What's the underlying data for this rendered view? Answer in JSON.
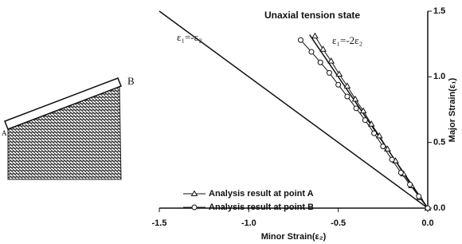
{
  "chart_data": {
    "type": "scatter",
    "xlabel": "Minor Strain(ε₂)",
    "ylabel": "Major Strain(ε₁)",
    "xlim": [
      -1.5,
      0.0
    ],
    "ylim": [
      0.0,
      1.5
    ],
    "xticks": [
      {
        "value": -1.5,
        "label": "-1.5"
      },
      {
        "value": -1.0,
        "label": "-1.0"
      },
      {
        "value": -0.5,
        "label": "-0.5"
      },
      {
        "value": 0,
        "label": "0.0"
      }
    ],
    "yticks": [
      {
        "value": 0,
        "label": "0.0"
      },
      {
        "value": 0.5,
        "label": "0.5"
      },
      {
        "value": 1.0,
        "label": "1.0"
      },
      {
        "value": 1.5,
        "label": "1.5"
      }
    ],
    "legend": "lower left",
    "inset_labels": [
      "A",
      "B"
    ],
    "reference_lines": [
      {
        "label": "ε₁=-ε₂",
        "x": [
          -1.5,
          0
        ],
        "y": [
          1.5,
          0
        ]
      },
      {
        "label": "ε₁=-2ε₂",
        "note": "Unaxial tension state",
        "x": [
          -0.66,
          0
        ],
        "y": [
          1.32,
          0
        ]
      }
    ],
    "series": [
      {
        "name": "Analysis result at point A",
        "marker": "triangle",
        "color": "#111111",
        "x": [
          0,
          -0.045,
          -0.09,
          -0.135,
          -0.18,
          -0.225,
          -0.27,
          -0.315,
          -0.36,
          -0.405,
          -0.45,
          -0.495,
          -0.54,
          -0.585,
          -0.63
        ],
        "values": [
          0,
          0.08,
          0.17,
          0.26,
          0.36,
          0.45,
          0.55,
          0.64,
          0.74,
          0.83,
          0.93,
          1.02,
          1.12,
          1.21,
          1.31
        ]
      },
      {
        "name": "Analysis result at point B",
        "marker": "circle",
        "color": "#111111",
        "x": [
          0,
          -0.05,
          -0.1,
          -0.15,
          -0.2,
          -0.25,
          -0.3,
          -0.35,
          -0.4,
          -0.45,
          -0.5,
          -0.55,
          -0.6,
          -0.65,
          -0.71
        ],
        "values": [
          0,
          0.09,
          0.18,
          0.27,
          0.37,
          0.47,
          0.57,
          0.67,
          0.76,
          0.85,
          0.94,
          1.03,
          1.11,
          1.19,
          1.28
        ]
      }
    ]
  }
}
